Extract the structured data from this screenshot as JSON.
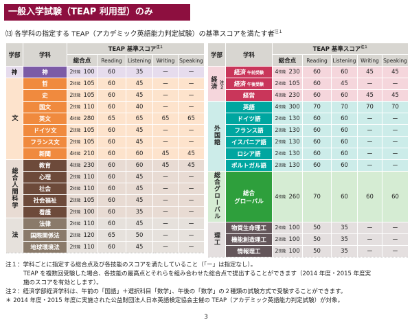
{
  "banner": "一般入学試験（TEAP 利用型）のみ",
  "subtitle": "⒀ 各学科の指定する TEAP（アカデミック英語能力判定試験）の基準スコアを満たす者",
  "subtitle_note": "注１",
  "headers": {
    "dept": "学部",
    "major": "学科",
    "teap": "TEAP 基準スコア",
    "teap_note": "注１",
    "total": "総合点",
    "reading": "Reading",
    "listening": "Listening",
    "writing": "Writing",
    "speaking": "Speaking"
  },
  "colors": {
    "banner": "#8d0f3f",
    "header": "#d8d6d1",
    "shin": "#7c5ba6",
    "bun": "#f08a3e",
    "sogo": "#6d4a3a",
    "ho": "#8a7a6a",
    "keizai": "#c9365a",
    "gaikoku": "#00a6a0",
    "global": "#2e9f3c",
    "riko": "#64565a"
  },
  "left_rows": [
    {
      "dept": "神",
      "major": "神",
      "skills": "2",
      "total": "100",
      "r": "60",
      "l": "35",
      "w": "ー",
      "s": "ー",
      "bg": "#e6dced",
      "sub": "#7c5ba6"
    },
    {
      "dept": "文",
      "major": "哲",
      "skills": "2",
      "total": "105",
      "r": "60",
      "l": "45",
      "w": "ー",
      "s": "ー",
      "bg": "#fde3cc",
      "sub": "#f08a3e"
    },
    {
      "major": "史",
      "skills": "2",
      "total": "105",
      "r": "60",
      "l": "45",
      "w": "ー",
      "s": "ー",
      "bg": "#fde3cc",
      "sub": "#f08a3e"
    },
    {
      "major": "国文",
      "skills": "2",
      "total": "110",
      "r": "60",
      "l": "40",
      "w": "ー",
      "s": "ー",
      "bg": "#fde3cc",
      "sub": "#f08a3e"
    },
    {
      "major": "英文",
      "skills": "4",
      "total": "280",
      "r": "65",
      "l": "65",
      "w": "65",
      "s": "65",
      "bg": "#fde3cc",
      "sub": "#f08a3e"
    },
    {
      "major": "ドイツ文",
      "skills": "2",
      "total": "105",
      "r": "60",
      "l": "45",
      "w": "ー",
      "s": "ー",
      "bg": "#fde3cc",
      "sub": "#f08a3e"
    },
    {
      "major": "フランス文",
      "skills": "2",
      "total": "105",
      "r": "60",
      "l": "45",
      "w": "ー",
      "s": "ー",
      "bg": "#fde3cc",
      "sub": "#f08a3e"
    },
    {
      "major": "新聞",
      "skills": "4",
      "total": "210",
      "r": "60",
      "l": "60",
      "w": "45",
      "s": "45",
      "bg": "#fde3cc",
      "sub": "#f08a3e"
    },
    {
      "dept": "総合人間科学",
      "major": "教育",
      "skills": "4",
      "total": "230",
      "r": "60",
      "l": "60",
      "w": "45",
      "s": "45",
      "bg": "#e8dbd3",
      "sub": "#6d4a3a"
    },
    {
      "major": "心理",
      "skills": "2",
      "total": "110",
      "r": "60",
      "l": "45",
      "w": "ー",
      "s": "ー",
      "bg": "#e8dbd3",
      "sub": "#6d4a3a"
    },
    {
      "major": "社会",
      "skills": "2",
      "total": "110",
      "r": "60",
      "l": "45",
      "w": "ー",
      "s": "ー",
      "bg": "#e8dbd3",
      "sub": "#6d4a3a"
    },
    {
      "major": "社会福祉",
      "skills": "2",
      "total": "105",
      "r": "60",
      "l": "45",
      "w": "ー",
      "s": "ー",
      "bg": "#e8dbd3",
      "sub": "#6d4a3a"
    },
    {
      "major": "看護",
      "skills": "2",
      "total": "100",
      "r": "60",
      "l": "35",
      "w": "ー",
      "s": "ー",
      "bg": "#e8dbd3",
      "sub": "#6d4a3a"
    },
    {
      "dept": "法",
      "major": "法律",
      "skills": "2",
      "total": "110",
      "r": "60",
      "l": "45",
      "w": "ー",
      "s": "ー",
      "bg": "#e6e1dc",
      "sub": "#8a7a6a"
    },
    {
      "major": "国際関係法",
      "skills": "2",
      "total": "120",
      "r": "65",
      "l": "50",
      "w": "ー",
      "s": "ー",
      "bg": "#e6e1dc",
      "sub": "#8a7a6a"
    },
    {
      "major": "地球環境法",
      "skills": "2",
      "total": "110",
      "r": "60",
      "l": "45",
      "w": "ー",
      "s": "ー",
      "bg": "#e6e1dc",
      "sub": "#8a7a6a"
    }
  ],
  "right_rows": [
    {
      "dept": "経済",
      "dept_note": "注２",
      "major": "経済",
      "major_tag": "午前受験",
      "skills": "4",
      "total": "230",
      "r": "60",
      "l": "60",
      "w": "45",
      "s": "45",
      "bg": "#f5d6dc",
      "sub": "#c9365a"
    },
    {
      "major": "経済",
      "major_tag": "午後受験",
      "skills": "2",
      "total": "105",
      "r": "60",
      "l": "45",
      "w": "ー",
      "s": "ー",
      "bg": "#f5d6dc",
      "sub": "#c9365a"
    },
    {
      "major": "経営",
      "skills": "4",
      "total": "230",
      "r": "60",
      "l": "60",
      "w": "45",
      "s": "45",
      "bg": "#f5d6dc",
      "sub": "#c9365a"
    },
    {
      "dept": "外国語",
      "major": "英語",
      "skills": "4",
      "total": "300",
      "r": "70",
      "l": "70",
      "w": "70",
      "s": "70",
      "bg": "#ccece9",
      "sub": "#00a6a0"
    },
    {
      "major": "ドイツ語",
      "skills": "2",
      "total": "130",
      "r": "60",
      "l": "60",
      "w": "ー",
      "s": "ー",
      "bg": "#ccece9",
      "sub": "#00a6a0"
    },
    {
      "major": "フランス語",
      "skills": "2",
      "total": "130",
      "r": "60",
      "l": "60",
      "w": "ー",
      "s": "ー",
      "bg": "#ccece9",
      "sub": "#00a6a0"
    },
    {
      "major": "イスパニア語",
      "skills": "2",
      "total": "130",
      "r": "60",
      "l": "60",
      "w": "ー",
      "s": "ー",
      "bg": "#ccece9",
      "sub": "#00a6a0"
    },
    {
      "major": "ロシア語",
      "skills": "2",
      "total": "130",
      "r": "60",
      "l": "60",
      "w": "ー",
      "s": "ー",
      "bg": "#ccece9",
      "sub": "#00a6a0"
    },
    {
      "major": "ポルトガル語",
      "skills": "2",
      "total": "130",
      "r": "60",
      "l": "60",
      "w": "ー",
      "s": "ー",
      "bg": "#ccece9",
      "sub": "#00a6a0"
    },
    {
      "dept": "総合グローバル",
      "major": "総合グローバル",
      "skills": "4",
      "total": "260",
      "r": "70",
      "l": "60",
      "w": "60",
      "s": "60",
      "bg": "#d5ecd3",
      "sub": "#2e9f3c",
      "span": 5
    },
    {
      "dept": "理工",
      "major": "物質生命理工",
      "skills": "2",
      "total": "100",
      "r": "50",
      "l": "35",
      "w": "ー",
      "s": "ー",
      "bg": "#e4dfdf",
      "sub": "#64565a"
    },
    {
      "major": "機能創造理工",
      "skills": "2",
      "total": "100",
      "r": "50",
      "l": "35",
      "w": "ー",
      "s": "ー",
      "bg": "#e4dfdf",
      "sub": "#64565a"
    },
    {
      "major": "情報理工",
      "skills": "2",
      "total": "100",
      "r": "50",
      "l": "35",
      "w": "ー",
      "s": "ー",
      "bg": "#e4dfdf",
      "sub": "#64565a"
    }
  ],
  "skills_label": "技能",
  "notes": {
    "n1a": "注１：学科ごとに指定する総合点及び各技能のスコアを満たしていること（「ー」は指定なし）。",
    "n1b": "TEAP を複数回受験した場合、各技能の最高点とそれらを組み合わせた総合点で提出することができます（2014 年度・2015 年度実",
    "n1c": "施のスコアを有効とします）。",
    "n2": "注２：経済学部経済学科は、午前の「国語」＋選択科目「数学」、午後の「数学」の２種類の試験方式で受験することができます。",
    "n3": "＊ 2014 年度・2015 年度に実施された公益財団法人日本英語検定協会主催の TEAP（アカデミック英語能力判定試験）が対象。"
  },
  "page_number": "3"
}
